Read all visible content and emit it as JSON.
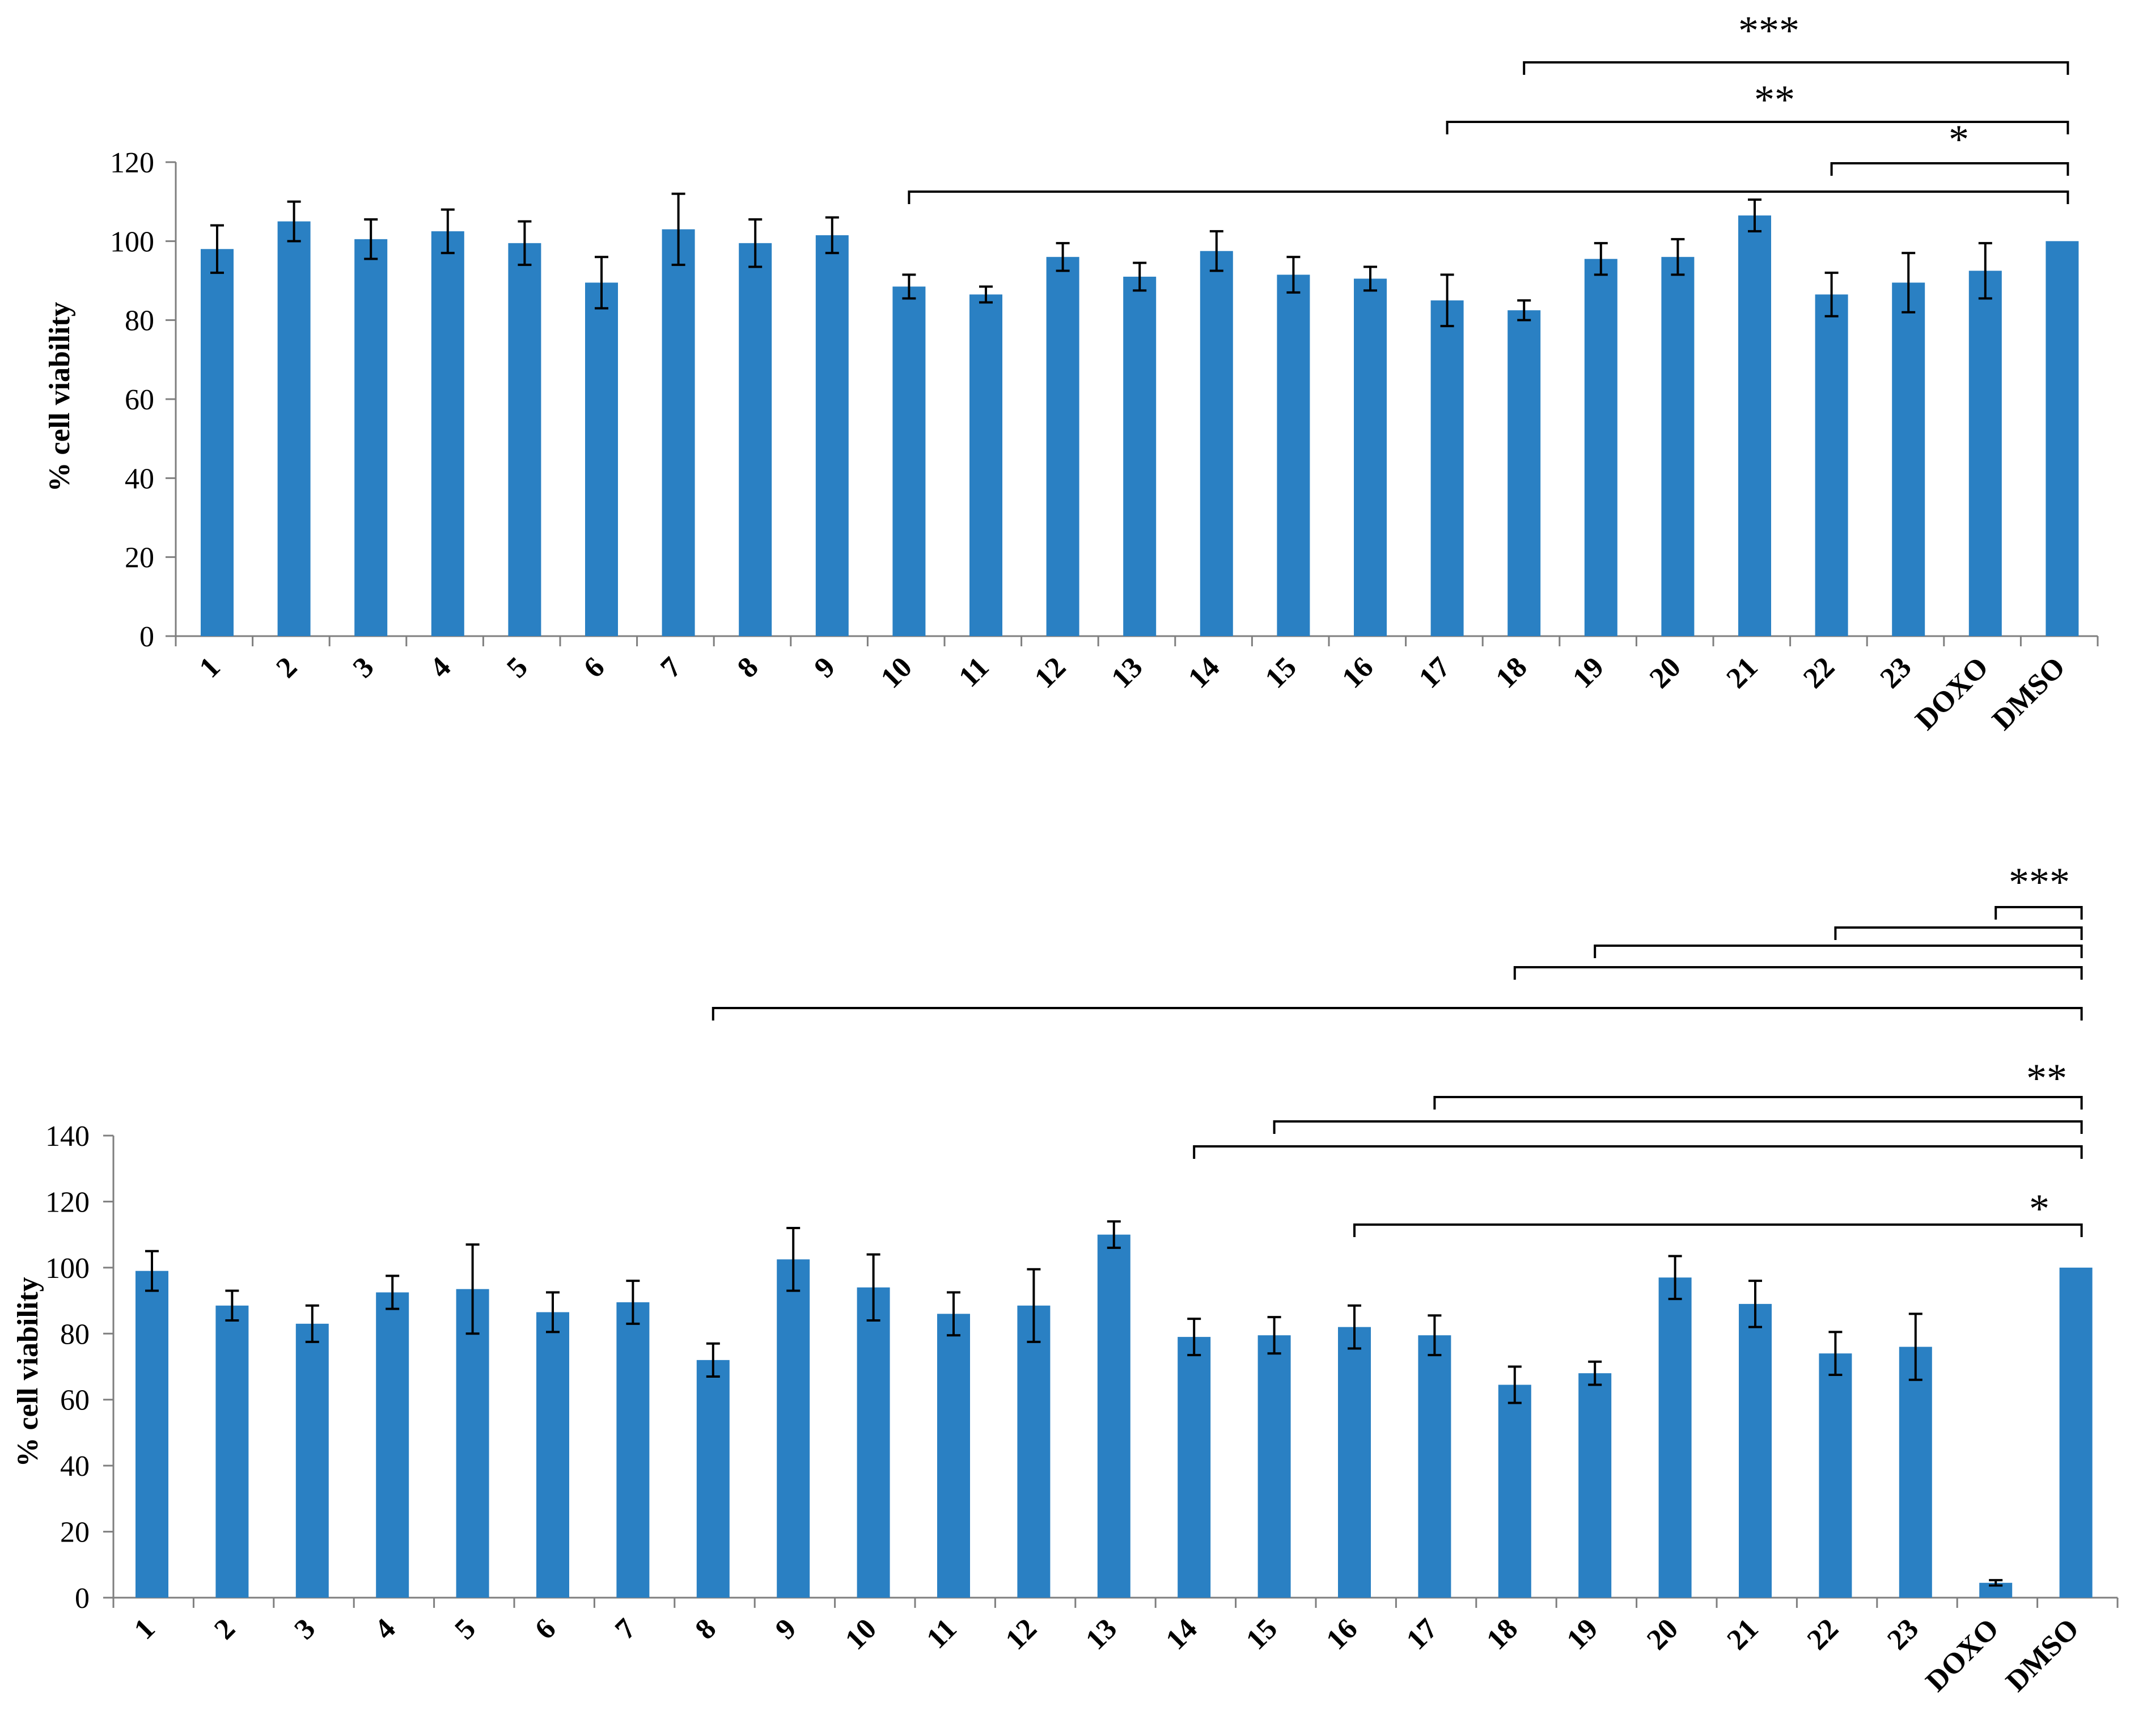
{
  "colors": {
    "bar": "#2a80c3",
    "axis": "#7f7f7f",
    "error": "#000000",
    "bracket": "#000000"
  },
  "chart_data": [
    {
      "type": "bar",
      "ylabel": "% cell viability",
      "ylim": [
        0,
        120
      ],
      "yticks": [
        0,
        20,
        40,
        60,
        80,
        100,
        120
      ],
      "grid": false,
      "categories": [
        "1",
        "2",
        "3",
        "4",
        "5",
        "6",
        "7",
        "8",
        "9",
        "10",
        "11",
        "12",
        "13",
        "14",
        "15",
        "16",
        "17",
        "18",
        "19",
        "20",
        "21",
        "22",
        "23",
        "DOXO",
        "DMSO"
      ],
      "values": [
        98,
        105,
        100.5,
        102.5,
        99.5,
        89.5,
        103,
        99.5,
        101.5,
        88.5,
        86.5,
        96,
        91,
        97.5,
        91.5,
        90.5,
        85,
        82.5,
        95.5,
        96,
        106.5,
        86.5,
        89.5,
        92.5,
        100
      ],
      "errors": [
        6,
        5,
        5,
        5.5,
        5.5,
        6.5,
        9,
        6,
        4.5,
        3,
        2,
        3.5,
        3.5,
        5,
        4.5,
        3,
        6.5,
        2.5,
        4,
        4.5,
        4,
        5.5,
        7.5,
        7,
        0
      ],
      "significance": [
        {
          "label": "***",
          "from": "18",
          "to": "DMSO"
        },
        {
          "label": "**",
          "from": "17",
          "to": "DMSO"
        },
        {
          "label": "*",
          "from": "22",
          "to": "DMSO"
        },
        {
          "label": "",
          "from": "10",
          "to": "DMSO"
        }
      ]
    },
    {
      "type": "bar",
      "ylabel": "% cell viability",
      "ylim": [
        0,
        140
      ],
      "yticks": [
        0,
        20,
        40,
        60,
        80,
        100,
        120,
        140
      ],
      "grid": false,
      "categories": [
        "1",
        "2",
        "3",
        "4",
        "5",
        "6",
        "7",
        "8",
        "9",
        "10",
        "11",
        "12",
        "13",
        "14",
        "15",
        "16",
        "17",
        "18",
        "19",
        "20",
        "21",
        "22",
        "23",
        "DOXO",
        "DMSO"
      ],
      "values": [
        99,
        88.5,
        83,
        92.5,
        93.5,
        86.5,
        89.5,
        72,
        102.5,
        94,
        86,
        88.5,
        110,
        79,
        79.5,
        82,
        79.5,
        64.5,
        68,
        97,
        89,
        74,
        76,
        4.5,
        100
      ],
      "errors": [
        6,
        4.5,
        5.5,
        5,
        13.5,
        6,
        6.5,
        5,
        9.5,
        10,
        6.5,
        11,
        4,
        5.5,
        5.5,
        6.5,
        6,
        5.5,
        3.5,
        6.5,
        7,
        6.5,
        10,
        0.8,
        0
      ],
      "significance": [
        {
          "label": "***",
          "from": "DOXO",
          "to": "DMSO"
        },
        {
          "label": "",
          "from": "22",
          "to": "DMSO"
        },
        {
          "label": "",
          "from": "19",
          "to": "DMSO"
        },
        {
          "label": "",
          "from": "18",
          "to": "DMSO"
        },
        {
          "label": "",
          "from": "8",
          "to": "DMSO"
        },
        {
          "label": "**",
          "from": "17",
          "to": "DMSO"
        },
        {
          "label": "",
          "from": "15",
          "to": "DMSO"
        },
        {
          "label": "",
          "from": "14",
          "to": "DMSO"
        },
        {
          "label": "*",
          "from": "16",
          "to": "DMSO"
        }
      ]
    }
  ]
}
